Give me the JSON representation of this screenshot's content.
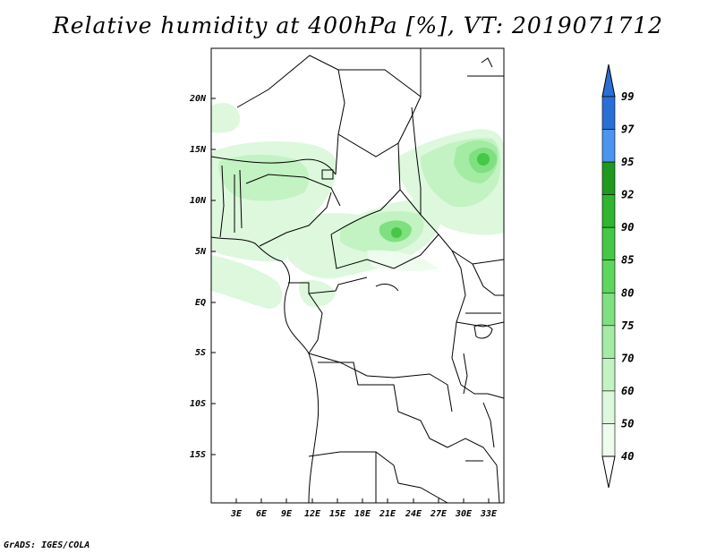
{
  "title": "Relative humidity at 400hPa [%], VT: 2019071712",
  "credit": "GrADS: IGES/COLA",
  "map": {
    "lat_range": [
      -20,
      25
    ],
    "lon_range": [
      0,
      35
    ],
    "lat_ticks": [
      "20N",
      "15N",
      "10N",
      "5N",
      "EQ",
      "5S",
      "10S",
      "15S"
    ],
    "lon_ticks": [
      "3E",
      "6E",
      "9E",
      "12E",
      "15E",
      "18E",
      "21E",
      "24E",
      "27E",
      "30E",
      "33E"
    ]
  },
  "colorbar": {
    "levels": [
      "99",
      "97",
      "95",
      "92",
      "90",
      "85",
      "80",
      "75",
      "70",
      "60",
      "50",
      "40"
    ],
    "colors": [
      "#2a6fd6",
      "#2a6fd6",
      "#4a95ee",
      "#1e9a1e",
      "#2fb52f",
      "#45c845",
      "#5dd65d",
      "#7fe07f",
      "#a4eba4",
      "#c3f2c3",
      "#ddf8dd",
      "#eefcee"
    ]
  }
}
